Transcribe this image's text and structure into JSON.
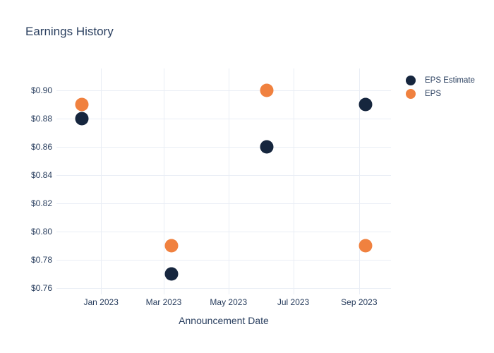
{
  "chart_data": {
    "type": "scatter",
    "title": "Earnings History",
    "xlabel": "Announcement Date",
    "ylabel": "",
    "grid": true,
    "legend_position": "right-top",
    "colors": {
      "text": "#2a3f5f",
      "grid": "#e9edf5",
      "background": "#ffffff"
    },
    "x_range": [
      "2022-11-20",
      "2023-10-01"
    ],
    "y_range": [
      0.7555,
      0.9155
    ],
    "x_ticks": [
      {
        "label": "Jan 2023",
        "date": "2023-01-01"
      },
      {
        "label": "Mar 2023",
        "date": "2023-03-01"
      },
      {
        "label": "May 2023",
        "date": "2023-05-01"
      },
      {
        "label": "Jul 2023",
        "date": "2023-07-01"
      },
      {
        "label": "Sep 2023",
        "date": "2023-09-01"
      }
    ],
    "y_ticks": [
      {
        "label": "$0.76",
        "value": 0.76
      },
      {
        "label": "$0.78",
        "value": 0.78
      },
      {
        "label": "$0.80",
        "value": 0.8
      },
      {
        "label": "$0.82",
        "value": 0.82
      },
      {
        "label": "$0.84",
        "value": 0.84
      },
      {
        "label": "$0.86",
        "value": 0.86
      },
      {
        "label": "$0.88",
        "value": 0.88
      },
      {
        "label": "$0.90",
        "value": 0.9
      }
    ],
    "series": [
      {
        "name": "EPS Estimate",
        "color": "#16263e",
        "marker": "circle",
        "points": [
          {
            "x": "2022-12-14",
            "y": 0.88
          },
          {
            "x": "2023-03-08",
            "y": 0.77
          },
          {
            "x": "2023-06-06",
            "y": 0.86
          },
          {
            "x": "2023-09-07",
            "y": 0.89
          }
        ]
      },
      {
        "name": "EPS",
        "color": "#f0813f",
        "marker": "circle",
        "points": [
          {
            "x": "2022-12-14",
            "y": 0.89
          },
          {
            "x": "2023-03-08",
            "y": 0.79
          },
          {
            "x": "2023-06-06",
            "y": 0.9
          },
          {
            "x": "2023-09-07",
            "y": 0.79
          }
        ]
      }
    ]
  }
}
